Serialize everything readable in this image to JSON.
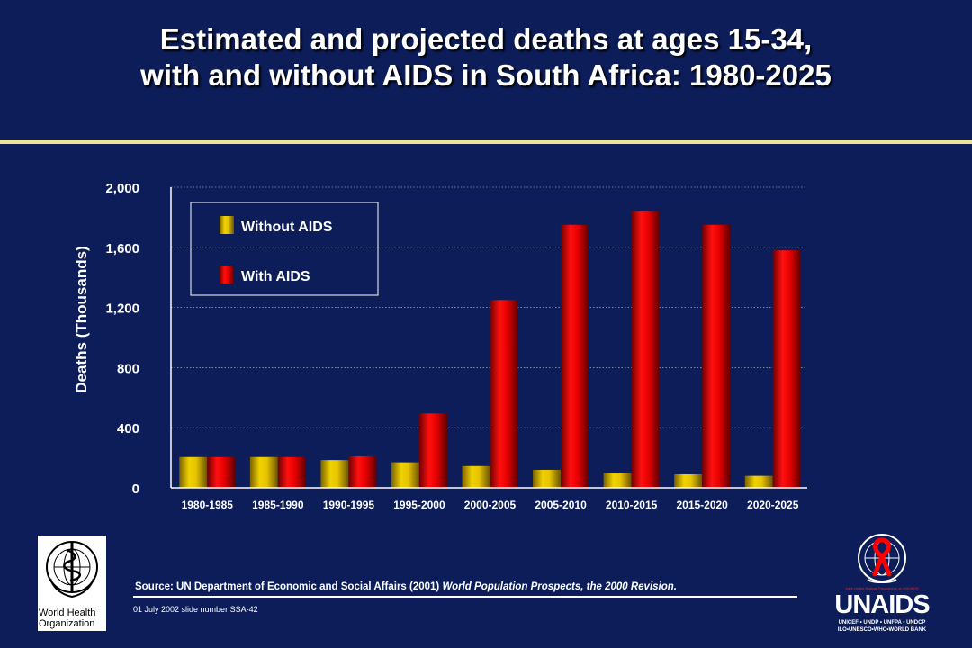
{
  "title": {
    "line1": "Estimated and projected deaths at ages 15-34,",
    "line2": "with and without AIDS in South Africa: 1980-2025"
  },
  "chart_data": {
    "type": "bar",
    "title": "",
    "ylabel": "Deaths (Thousands)",
    "xlabel": "",
    "categories": [
      "1980-1985",
      "1985-1990",
      "1990-1995",
      "1995-2000",
      "2000-2005",
      "2005-2010",
      "2010-2015",
      "2015-2020",
      "2020-2025"
    ],
    "series": [
      {
        "name": "Without AIDS",
        "color": "#d8b400",
        "values": [
          205,
          205,
          185,
          170,
          145,
          120,
          100,
          90,
          80
        ]
      },
      {
        "name": "With AIDS",
        "color": "#dd0000",
        "values": [
          205,
          205,
          210,
          495,
          1250,
          1750,
          1840,
          1750,
          1580
        ]
      }
    ],
    "ylim": [
      0,
      2000
    ],
    "yticks": [
      0,
      400,
      800,
      1200,
      1600,
      2000
    ],
    "ytick_labels": [
      "0",
      "400",
      "800",
      "1,200",
      "1,600",
      "2,000"
    ],
    "grid": true,
    "legend_position": "top-left"
  },
  "footer": {
    "source_lead": "Source:  UN Department of Economic and Social Affairs (2001) ",
    "source_italic": " World Population Prospects,  the 2000 Revision.",
    "slide_id": "01 July 2002 slide number SSA-42"
  },
  "logos": {
    "who_line1": "World Health",
    "who_line2": "Organization",
    "unaids_tagline": "Joint United Nations Programme on HIV/AIDS",
    "unaids_wordmark": "UNAIDS",
    "unaids_partners_line1": "UNICEF • UNDP • UNFPA • UNDCP",
    "unaids_partners_line2": "ILO•UNESCO•WHO•WORLD BANK"
  }
}
